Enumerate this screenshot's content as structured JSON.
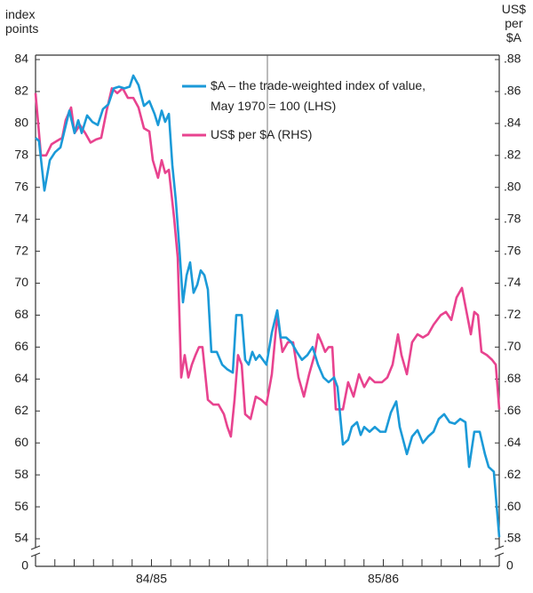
{
  "chart_data": {
    "type": "line",
    "ylabel": "index\npoints",
    "y2label": "US$\nper\n$A",
    "xlim": [
      0,
      24
    ],
    "xticks": [
      {
        "value": 6,
        "label": "84/85"
      },
      {
        "value": 18,
        "label": "85/86"
      }
    ],
    "xgrid": [
      12
    ],
    "xminorticks": [
      0,
      1,
      2,
      3,
      4,
      5,
      6,
      7,
      8,
      9,
      10,
      11,
      12,
      13,
      14,
      15,
      16,
      17,
      18,
      19,
      20,
      21,
      22,
      23,
      24
    ],
    "ylim": [
      54,
      84
    ],
    "yticks": [
      54,
      56,
      58,
      60,
      62,
      64,
      66,
      68,
      70,
      72,
      74,
      76,
      78,
      80,
      82,
      84
    ],
    "ybreak": 0,
    "y2lim": [
      0.58,
      0.88
    ],
    "y2ticks": [
      {
        "value": 0.58,
        "label": ".58"
      },
      {
        "value": 0.6,
        "label": ".60"
      },
      {
        "value": 0.62,
        "label": ".62"
      },
      {
        "value": 0.64,
        "label": ".64"
      },
      {
        "value": 0.66,
        "label": ".66"
      },
      {
        "value": 0.68,
        "label": ".68"
      },
      {
        "value": 0.7,
        "label": ".70"
      },
      {
        "value": 0.72,
        "label": ".72"
      },
      {
        "value": 0.74,
        "label": ".74"
      },
      {
        "value": 0.76,
        "label": ".76"
      },
      {
        "value": 0.78,
        "label": ".78"
      },
      {
        "value": 0.8,
        "label": ".80"
      },
      {
        "value": 0.82,
        "label": ".82"
      },
      {
        "value": 0.84,
        "label": ".84"
      },
      {
        "value": 0.86,
        "label": ".86"
      },
      {
        "value": 0.88,
        "label": ".88"
      }
    ],
    "y2break": 0,
    "series": [
      {
        "name": "$A – the trade-weighted index of value,\nMay 1970 = 100 (LHS)",
        "color": "#1b9ad8",
        "x": [
          0,
          0.18,
          0.46,
          0.74,
          1.01,
          1.29,
          1.47,
          1.75,
          2.02,
          2.21,
          2.39,
          2.67,
          2.94,
          3.22,
          3.49,
          3.77,
          4.05,
          4.32,
          4.6,
          4.87,
          5.06,
          5.33,
          5.61,
          5.89,
          6.16,
          6.34,
          6.53,
          6.71,
          6.9,
          7.08,
          7.26,
          7.45,
          7.63,
          7.82,
          8.0,
          8.18,
          8.37,
          8.55,
          8.74,
          8.92,
          9.1,
          9.38,
          9.66,
          9.93,
          10.21,
          10.39,
          10.67,
          10.85,
          11.03,
          11.22,
          11.4,
          11.59,
          11.77,
          11.95,
          12.23,
          12.51,
          12.69,
          12.97,
          13.24,
          13.52,
          13.79,
          14.07,
          14.34,
          14.62,
          14.9,
          15.17,
          15.45,
          15.63,
          15.91,
          16.18,
          16.37,
          16.64,
          16.83,
          17.01,
          17.29,
          17.56,
          17.84,
          18.11,
          18.39,
          18.67,
          18.85,
          19.22,
          19.49,
          19.77,
          20.05,
          20.32,
          20.6,
          20.87,
          21.15,
          21.43,
          21.7,
          21.98,
          22.25,
          22.44,
          22.71,
          22.99,
          23.26,
          23.45,
          23.72,
          24
        ],
        "values": [
          79.1,
          78.9,
          75.8,
          77.7,
          78.2,
          78.5,
          79.4,
          80.8,
          79.4,
          80.2,
          79.4,
          80.5,
          80.1,
          79.9,
          80.9,
          81.2,
          82.2,
          82.3,
          82.2,
          82.3,
          83.0,
          82.4,
          81.1,
          81.4,
          80.6,
          79.9,
          80.8,
          80.1,
          80.6,
          77.4,
          75.2,
          72.1,
          68.8,
          70.5,
          71.3,
          69.4,
          69.9,
          70.8,
          70.5,
          69.6,
          65.7,
          65.7,
          64.9,
          64.6,
          64.4,
          68.0,
          68.0,
          65.2,
          64.9,
          65.7,
          65.2,
          65.5,
          65.2,
          64.9,
          66.9,
          68.3,
          66.6,
          66.6,
          66.3,
          65.7,
          65.2,
          65.5,
          66.0,
          64.9,
          64.1,
          63.8,
          64.1,
          63.5,
          59.9,
          60.2,
          61.0,
          61.3,
          60.5,
          61.0,
          60.7,
          61.0,
          60.7,
          60.7,
          61.9,
          62.6,
          61.0,
          59.3,
          60.4,
          60.8,
          60.0,
          60.4,
          60.7,
          61.5,
          61.8,
          61.3,
          61.2,
          61.5,
          61.3,
          58.5,
          60.7,
          60.7,
          59.3,
          58.5,
          58.2,
          54.1
        ]
      },
      {
        "name": "US$ per $A (RHS)",
        "color": "#e8438f",
        "axis": "y2",
        "x": [
          0,
          0.28,
          0.55,
          0.83,
          1.1,
          1.38,
          1.56,
          1.84,
          2.02,
          2.3,
          2.57,
          2.85,
          3.13,
          3.4,
          3.68,
          3.95,
          4.23,
          4.51,
          4.78,
          5.06,
          5.33,
          5.61,
          5.89,
          6.07,
          6.34,
          6.53,
          6.71,
          6.9,
          7.17,
          7.36,
          7.54,
          7.72,
          7.91,
          8.09,
          8.28,
          8.46,
          8.64,
          8.92,
          9.2,
          9.47,
          9.75,
          9.93,
          10.11,
          10.3,
          10.48,
          10.67,
          10.85,
          11.13,
          11.4,
          11.68,
          11.95,
          12.23,
          12.51,
          12.78,
          13.06,
          13.33,
          13.61,
          13.89,
          14.16,
          14.44,
          14.62,
          14.8,
          14.99,
          15.17,
          15.36,
          15.54,
          15.91,
          16.18,
          16.46,
          16.74,
          17.01,
          17.29,
          17.56,
          17.93,
          18.21,
          18.48,
          18.76,
          18.94,
          19.22,
          19.49,
          19.77,
          20.05,
          20.32,
          20.6,
          20.97,
          21.24,
          21.52,
          21.79,
          22.07,
          22.34,
          22.53,
          22.71,
          22.9,
          23.08,
          23.36,
          23.63,
          23.82,
          24
        ],
        "values": [
          0.859,
          0.82,
          0.82,
          0.827,
          0.829,
          0.831,
          0.842,
          0.85,
          0.834,
          0.839,
          0.834,
          0.828,
          0.83,
          0.831,
          0.848,
          0.862,
          0.859,
          0.862,
          0.856,
          0.856,
          0.85,
          0.837,
          0.835,
          0.817,
          0.806,
          0.817,
          0.809,
          0.811,
          0.781,
          0.756,
          0.681,
          0.695,
          0.681,
          0.689,
          0.695,
          0.7,
          0.7,
          0.667,
          0.664,
          0.664,
          0.658,
          0.65,
          0.644,
          0.667,
          0.695,
          0.689,
          0.658,
          0.655,
          0.669,
          0.667,
          0.664,
          0.683,
          0.72,
          0.697,
          0.703,
          0.703,
          0.681,
          0.669,
          0.683,
          0.695,
          0.708,
          0.703,
          0.697,
          0.7,
          0.7,
          0.661,
          0.661,
          0.678,
          0.669,
          0.683,
          0.675,
          0.681,
          0.678,
          0.678,
          0.681,
          0.689,
          0.708,
          0.695,
          0.683,
          0.703,
          0.708,
          0.706,
          0.708,
          0.714,
          0.72,
          0.722,
          0.717,
          0.731,
          0.737,
          0.72,
          0.708,
          0.722,
          0.72,
          0.697,
          0.695,
          0.692,
          0.689,
          0.661
        ]
      }
    ],
    "legend": "top-left"
  }
}
